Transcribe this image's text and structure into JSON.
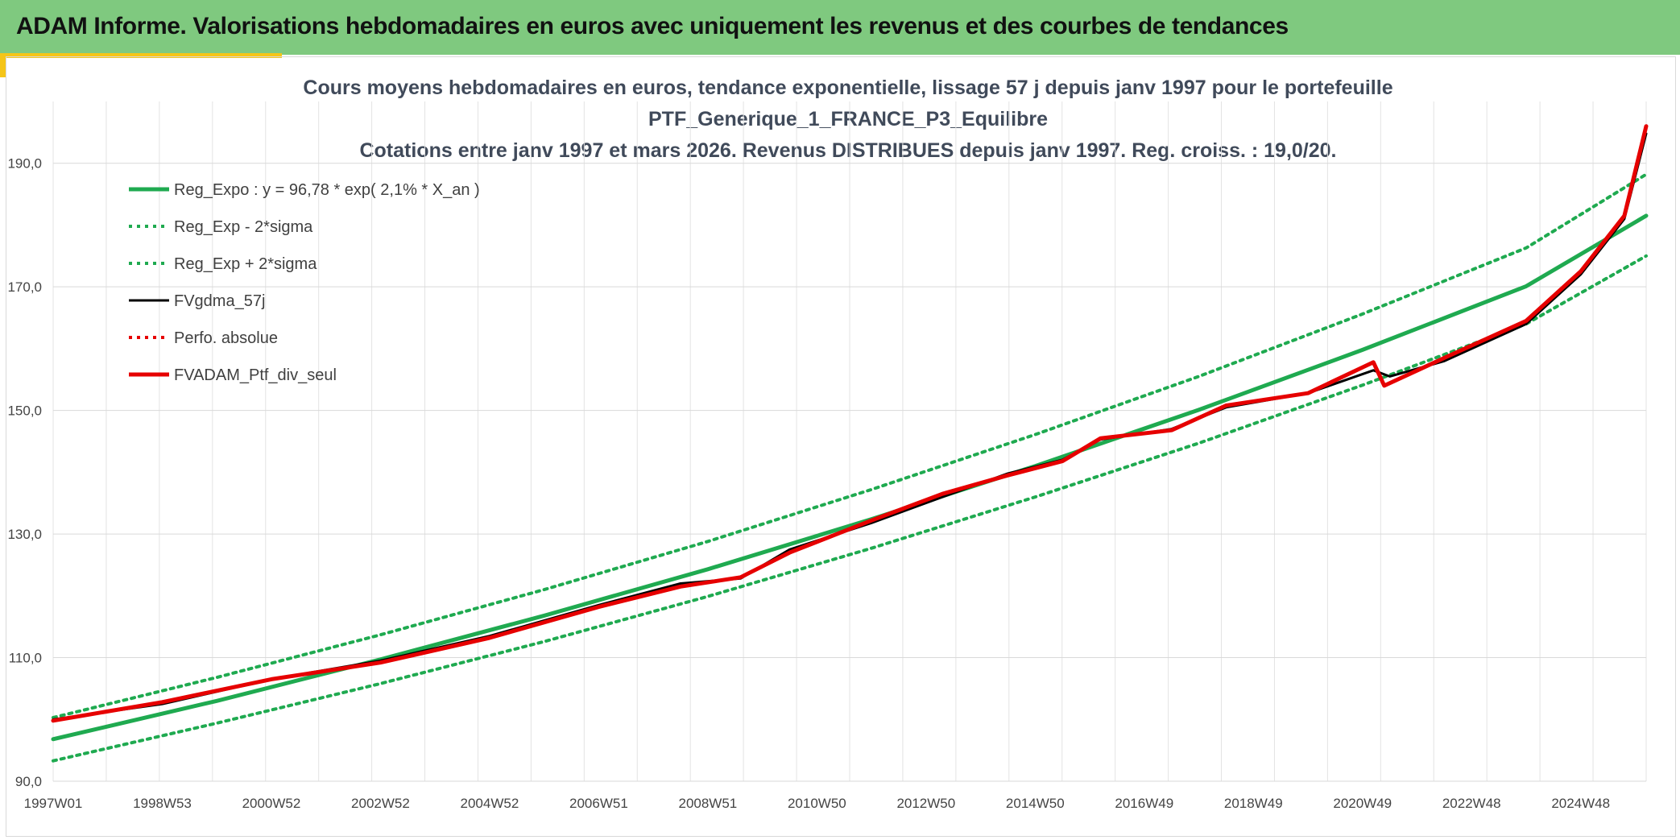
{
  "header": {
    "title": "ADAM Informe. Valorisations hebdomadaires en euros avec uniquement les revenus et des courbes de tendances"
  },
  "colors": {
    "header_bg": "#7fc97f",
    "accent_gold": "#f5c518",
    "trend_green": "#1faa50",
    "black_series": "#000000",
    "red_series": "#e60000"
  },
  "chart_data": {
    "type": "line",
    "title_lines": [
      "Cours moyens hebdomadaires en euros, tendance exponentielle, lissage 57 j depuis janv 1997 pour le portefeuille",
      "PTF_Generique_1_FRANCE_P3_Equilibre",
      "Cotations entre janv 1997 et mars 2026. Revenus DISTRIBUES depuis janv 1997. Reg. croiss. : 19,0/20."
    ],
    "x_tick_labels": [
      "1997W01",
      "1998W53",
      "2000W52",
      "2002W52",
      "2004W52",
      "2006W51",
      "2008W51",
      "2010W50",
      "2012W50",
      "2014W50",
      "2016W49",
      "2018W49",
      "2020W49",
      "2022W48",
      "2024W48"
    ],
    "x_range": [
      1997.0,
      2026.2
    ],
    "y_tick_labels": [
      "90,0",
      "110,0",
      "130,0",
      "150,0",
      "170,0",
      "190,0"
    ],
    "y_ticks": [
      90,
      110,
      130,
      150,
      170,
      190
    ],
    "ylim": [
      90,
      200
    ],
    "grid": true,
    "legend_position": "top-left",
    "series": [
      {
        "name": "Reg_Expo : y = 96,78 * exp( 2,1% *  X_an )",
        "style": "solid-green",
        "points": [
          [
            1997.0,
            96.8
          ],
          [
            2000.0,
            103.0
          ],
          [
            2003.0,
            109.7
          ],
          [
            2006.0,
            116.8
          ],
          [
            2009.0,
            124.3
          ],
          [
            2012.0,
            132.4
          ],
          [
            2015.0,
            141.0
          ],
          [
            2018.0,
            150.1
          ],
          [
            2021.0,
            159.8
          ],
          [
            2024.0,
            170.1
          ],
          [
            2026.2,
            181.5
          ]
        ]
      },
      {
        "name": "Reg_Exp - 2*sigma",
        "style": "dotted-green",
        "points": [
          [
            1997.0,
            93.3
          ],
          [
            2000.0,
            99.4
          ],
          [
            2003.0,
            105.8
          ],
          [
            2006.0,
            112.6
          ],
          [
            2009.0,
            119.9
          ],
          [
            2012.0,
            127.7
          ],
          [
            2015.0,
            136.0
          ],
          [
            2018.0,
            144.7
          ],
          [
            2021.0,
            154.1
          ],
          [
            2024.0,
            164.0
          ],
          [
            2026.2,
            175.0
          ]
        ]
      },
      {
        "name": "Reg_Exp + 2*sigma",
        "style": "dotted-green",
        "points": [
          [
            1997.0,
            100.3
          ],
          [
            2000.0,
            106.8
          ],
          [
            2003.0,
            113.7
          ],
          [
            2006.0,
            121.0
          ],
          [
            2009.0,
            128.8
          ],
          [
            2012.0,
            137.2
          ],
          [
            2015.0,
            146.1
          ],
          [
            2018.0,
            155.5
          ],
          [
            2021.0,
            165.6
          ],
          [
            2024.0,
            176.3
          ],
          [
            2026.2,
            188.2
          ]
        ]
      },
      {
        "name": "FVgdma_57j",
        "style": "solid-black",
        "points": [
          [
            1997.0,
            100.0
          ],
          [
            1999.0,
            102.5
          ],
          [
            2001.0,
            106.5
          ],
          [
            2003.0,
            109.5
          ],
          [
            2005.0,
            113.5
          ],
          [
            2007.0,
            118.5
          ],
          [
            2008.5,
            122.0
          ],
          [
            2009.6,
            122.8
          ],
          [
            2010.5,
            127.5
          ],
          [
            2012.0,
            131.8
          ],
          [
            2013.3,
            136.0
          ],
          [
            2014.5,
            139.8
          ],
          [
            2015.5,
            142.0
          ],
          [
            2016.2,
            145.3
          ],
          [
            2017.5,
            147.0
          ],
          [
            2018.5,
            150.5
          ],
          [
            2020.0,
            152.8
          ],
          [
            2021.2,
            156.5
          ],
          [
            2021.5,
            155.5
          ],
          [
            2022.5,
            158.0
          ],
          [
            2024.0,
            164.0
          ],
          [
            2025.0,
            172.0
          ],
          [
            2025.8,
            181.0
          ],
          [
            2026.2,
            194.8
          ]
        ]
      },
      {
        "name": "Perfo. absolue",
        "style": "dotted-red",
        "points": []
      },
      {
        "name": "FVADAM_Ptf_div_seul",
        "style": "solid-red",
        "points": [
          [
            1997.0,
            99.8
          ],
          [
            1999.0,
            102.8
          ],
          [
            2001.0,
            106.5
          ],
          [
            2003.0,
            109.2
          ],
          [
            2005.0,
            113.2
          ],
          [
            2007.0,
            118.2
          ],
          [
            2008.5,
            121.5
          ],
          [
            2009.6,
            123.0
          ],
          [
            2010.5,
            127.0
          ],
          [
            2012.0,
            132.2
          ],
          [
            2013.3,
            136.5
          ],
          [
            2014.5,
            139.5
          ],
          [
            2015.5,
            141.8
          ],
          [
            2016.2,
            145.5
          ],
          [
            2017.5,
            146.8
          ],
          [
            2018.5,
            150.8
          ],
          [
            2020.0,
            152.8
          ],
          [
            2021.2,
            157.8
          ],
          [
            2021.4,
            154.0
          ],
          [
            2022.5,
            158.5
          ],
          [
            2024.0,
            164.5
          ],
          [
            2025.0,
            172.5
          ],
          [
            2025.8,
            181.5
          ],
          [
            2026.2,
            196.0
          ]
        ]
      }
    ]
  }
}
